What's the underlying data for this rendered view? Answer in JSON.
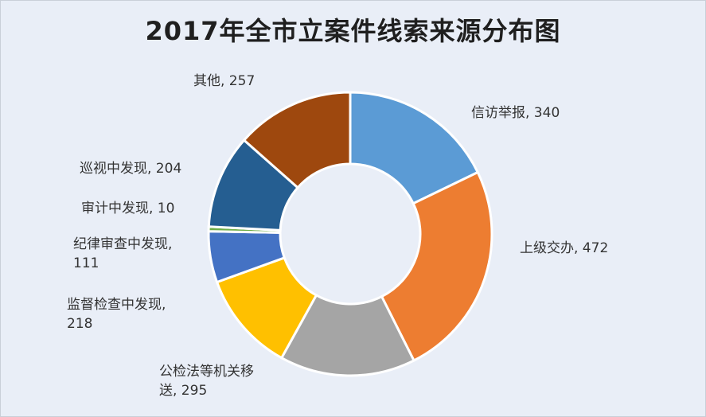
{
  "chart_data": {
    "type": "pie",
    "donut": true,
    "title": "2017年全市立案件线索来源分布图",
    "legend": "none",
    "slices": [
      {
        "label": "信访举报",
        "value": 340,
        "color": "#5b9bd5"
      },
      {
        "label": "上级交办",
        "value": 472,
        "color": "#ed7d31"
      },
      {
        "label": "公检法等机关移送",
        "value": 295,
        "color": "#a5a5a5"
      },
      {
        "label": "监督检查中发现",
        "value": 218,
        "color": "#ffc000"
      },
      {
        "label": "纪律审查中发现",
        "value": 111,
        "color": "#4472c4"
      },
      {
        "label": "审计中发现",
        "value": 10,
        "color": "#70ad47"
      },
      {
        "label": "巡视中发现",
        "value": 204,
        "color": "#255e91"
      },
      {
        "label": "其他",
        "value": 257,
        "color": "#9e480e"
      }
    ],
    "data_labels": [
      {
        "lines": [
          "信访举报, 340"
        ]
      },
      {
        "lines": [
          "上级交办, 472"
        ]
      },
      {
        "lines": [
          "公检法等机关移",
          "送, 295"
        ]
      },
      {
        "lines": [
          "监督检查中发现,",
          "218"
        ]
      },
      {
        "lines": [
          "纪律审查中发现,",
          "111"
        ]
      },
      {
        "lines": [
          "审计中发现, 10"
        ]
      },
      {
        "lines": [
          "巡视中发现, 204"
        ]
      },
      {
        "lines": [
          "其他, 257"
        ]
      }
    ]
  }
}
